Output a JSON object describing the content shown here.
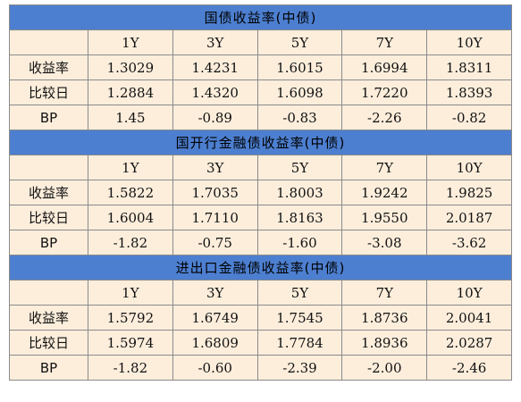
{
  "columns": [
    "1Y",
    "3Y",
    "5Y",
    "7Y",
    "10Y"
  ],
  "sections": [
    {
      "title": "国债收益率(中债)",
      "rows": [
        {
          "label": "收益率",
          "values": [
            "1.3029",
            "1.4231",
            "1.6015",
            "1.6994",
            "1.8311"
          ]
        },
        {
          "label": "比较日",
          "values": [
            "1.2884",
            "1.4320",
            "1.6098",
            "1.7220",
            "1.8393"
          ]
        },
        {
          "label": "BP",
          "values": [
            "1.45",
            "-0.89",
            "-0.83",
            "-2.26",
            "-0.82"
          ]
        }
      ]
    },
    {
      "title": "国开行金融债收益率(中债)",
      "rows": [
        {
          "label": "收益率",
          "values": [
            "1.5822",
            "1.7035",
            "1.8003",
            "1.9242",
            "1.9825"
          ]
        },
        {
          "label": "比较日",
          "values": [
            "1.6004",
            "1.7110",
            "1.8163",
            "1.9550",
            "2.0187"
          ]
        },
        {
          "label": "BP",
          "values": [
            "-1.82",
            "-0.75",
            "-1.60",
            "-3.08",
            "-3.62"
          ]
        }
      ]
    },
    {
      "title": "进出口金融债收益率(中债)",
      "rows": [
        {
          "label": "收益率",
          "values": [
            "1.5792",
            "1.6749",
            "1.7545",
            "1.8736",
            "2.0041"
          ]
        },
        {
          "label": "比较日",
          "values": [
            "1.5974",
            "1.6809",
            "1.7784",
            "1.8936",
            "2.0287"
          ]
        },
        {
          "label": "BP",
          "values": [
            "-1.82",
            "-0.60",
            "-2.39",
            "-2.00",
            "-2.46"
          ]
        }
      ]
    }
  ],
  "colors": {
    "header_bg": "#4d7fd0",
    "cell_bg": "#fdeedc",
    "border": "#8a8a8a"
  }
}
